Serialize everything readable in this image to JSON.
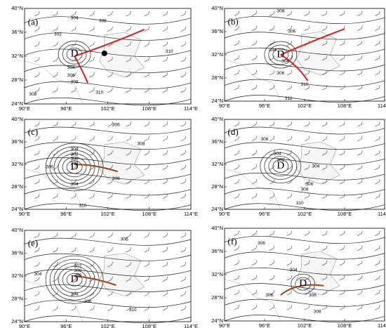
{
  "panels": [
    {
      "label": "(a)",
      "low": "D",
      "lat_ticks": [
        "40°N",
        "36°N",
        "32°N",
        "28°N",
        "24°N"
      ],
      "lon_ticks": [
        "90°E",
        "96°E",
        "102°E",
        "108°E",
        "114°E"
      ],
      "contour_labels": [
        "304",
        "302",
        "308",
        "310",
        "304",
        "306",
        "308",
        "310",
        "308"
      ]
    },
    {
      "label": "(b)",
      "low": "D",
      "lat_ticks": [
        "40°N",
        "36°N",
        "32°N",
        "28°N",
        "24°N"
      ],
      "lon_ticks": [
        "90°E",
        "96°E",
        "102°E",
        "108°E",
        "114°E"
      ],
      "contour_labels": [
        "308",
        "306",
        "304",
        "304",
        "306",
        "310",
        "312"
      ]
    },
    {
      "label": "(c)",
      "low": "D",
      "lat_ticks": [
        "40°N",
        "36°N",
        "32°N",
        "28°N",
        "24°N"
      ],
      "lon_ticks": [
        "90°E",
        "96°E",
        "102°E",
        "108°E",
        "114°E"
      ],
      "contour_labels": [
        "306",
        "304",
        "302",
        "300",
        "298",
        "306",
        "308",
        "304",
        "306",
        "310"
      ]
    },
    {
      "label": "(d)",
      "low": "D",
      "lat_ticks": [
        "40°N",
        "36°N",
        "32°N",
        "28°N",
        "24°N"
      ],
      "lon_ticks": [
        "90°E",
        "96°E",
        "102°E",
        "108°E",
        "114°E"
      ],
      "contour_labels": [
        "306",
        "304",
        "302",
        "304",
        "306",
        "308",
        "310"
      ]
    },
    {
      "label": "(e)",
      "low": "D",
      "lat_ticks": [
        "40°N",
        "36°N",
        "32°N",
        "28°N",
        "24°N"
      ],
      "lon_ticks": [
        "90°E",
        "96°E",
        "102°E",
        "108°E",
        "114°E"
      ],
      "contour_labels": [
        "306",
        "304",
        "302",
        "300",
        "298",
        "304",
        "306",
        "310"
      ]
    },
    {
      "label": "(f)",
      "low": "D",
      "lat_ticks": [
        "40°N",
        "36°N",
        "32°N",
        "28°N",
        "24°N"
      ],
      "lon_ticks": [
        "90°E",
        "96°E",
        "102°E",
        "108°E",
        "114°E"
      ],
      "contour_labels": [
        "306",
        "304",
        "306",
        "306",
        "308"
      ]
    }
  ]
}
